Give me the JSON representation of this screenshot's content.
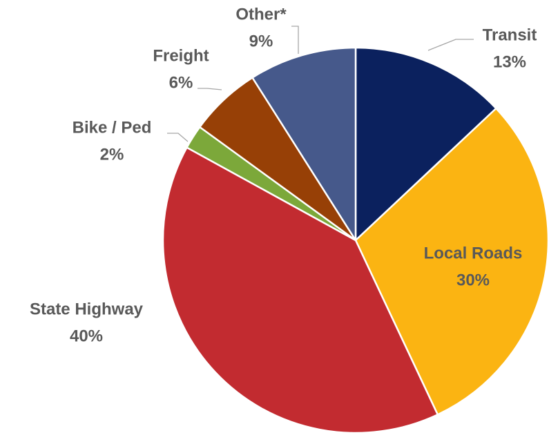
{
  "chart_data": {
    "type": "pie",
    "categories": [
      "Transit",
      "Local Roads",
      "State Highway",
      "Bike / Ped",
      "Freight",
      "Other*"
    ],
    "values": [
      13,
      30,
      40,
      2,
      6,
      9
    ],
    "value_labels": [
      "13%",
      "30%",
      "40%",
      "2%",
      "6%",
      "9%"
    ],
    "colors": [
      "#0b215e",
      "#fbb412",
      "#c22b30",
      "#7ca83a",
      "#974006",
      "#46598b"
    ]
  }
}
